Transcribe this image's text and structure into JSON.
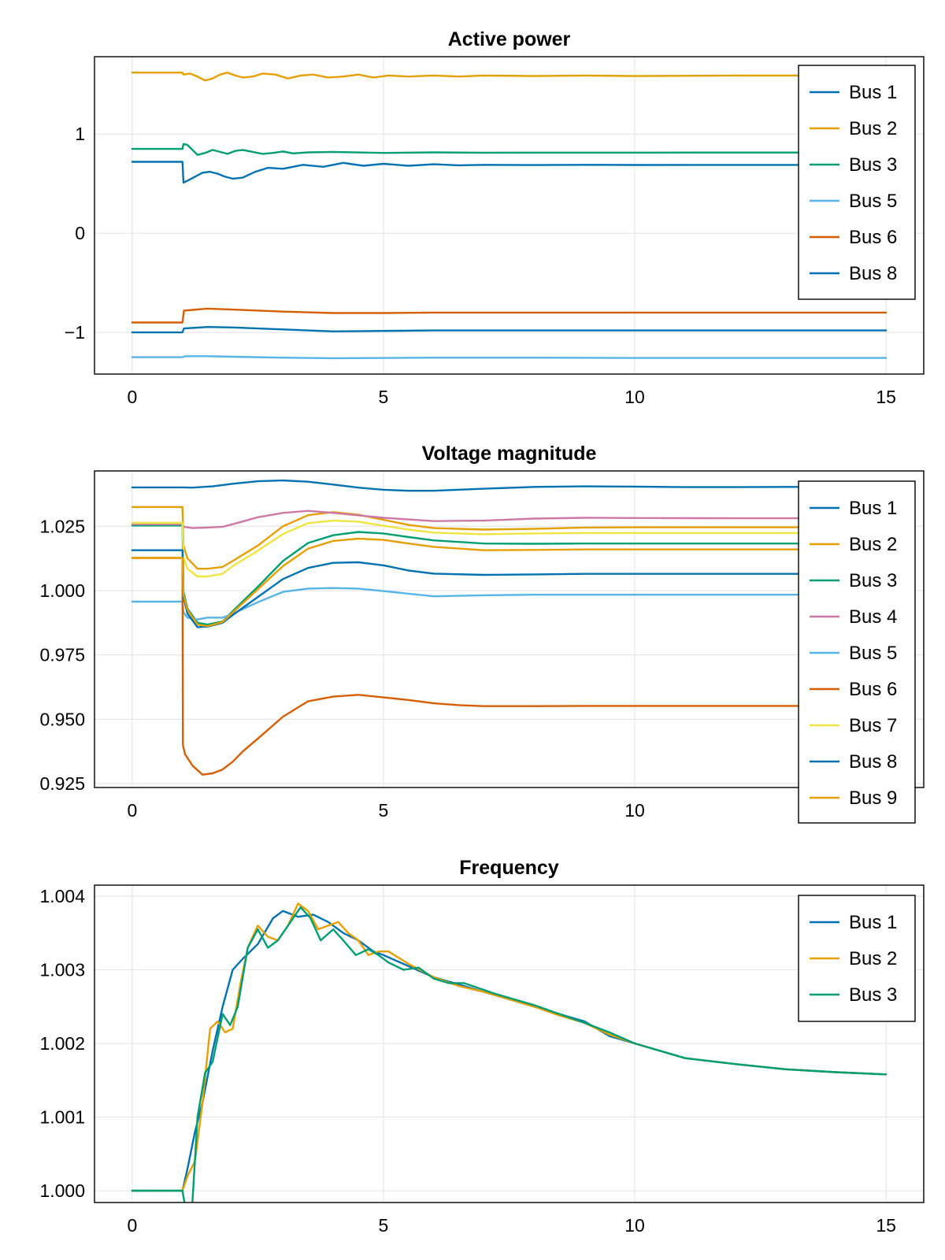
{
  "chart_data": [
    {
      "type": "line",
      "title": "Active power",
      "xlim": [
        -0.75,
        15.75
      ],
      "ylim": [
        -1.42,
        1.78
      ],
      "xticks": [
        0,
        5,
        10,
        15
      ],
      "xtick_labels": [
        "0",
        "5",
        "10",
        "15"
      ],
      "yticks": [
        -1,
        0,
        1
      ],
      "ytick_labels": [
        "−1",
        "0",
        "1"
      ],
      "legend_position": "top-right",
      "series": [
        {
          "name": "Bus 1",
          "color": "#0072b2",
          "x": [
            0,
            1,
            1.02,
            1.1,
            1.25,
            1.4,
            1.55,
            1.7,
            1.85,
            2.0,
            2.2,
            2.45,
            2.7,
            3.0,
            3.4,
            3.8,
            4.2,
            4.6,
            5.0,
            5.5,
            6,
            6.5,
            7,
            8,
            9,
            10,
            12,
            15
          ],
          "y": [
            0.72,
            0.72,
            0.51,
            0.53,
            0.57,
            0.61,
            0.62,
            0.6,
            0.57,
            0.55,
            0.56,
            0.62,
            0.66,
            0.65,
            0.69,
            0.67,
            0.71,
            0.68,
            0.7,
            0.68,
            0.695,
            0.685,
            0.69,
            0.687,
            0.69,
            0.688,
            0.689,
            0.689
          ]
        },
        {
          "name": "Bus 2",
          "color": "#e69f00",
          "x": [
            0,
            1,
            1.02,
            1.15,
            1.3,
            1.45,
            1.6,
            1.75,
            1.9,
            2.05,
            2.2,
            2.4,
            2.6,
            2.85,
            3.1,
            3.35,
            3.6,
            3.9,
            4.2,
            4.5,
            4.8,
            5.1,
            5.5,
            6,
            6.5,
            7,
            8,
            9,
            10,
            12,
            15
          ],
          "y": [
            1.62,
            1.62,
            1.6,
            1.61,
            1.58,
            1.54,
            1.56,
            1.6,
            1.62,
            1.59,
            1.57,
            1.58,
            1.61,
            1.6,
            1.56,
            1.59,
            1.6,
            1.57,
            1.58,
            1.6,
            1.57,
            1.59,
            1.58,
            1.59,
            1.58,
            1.59,
            1.585,
            1.59,
            1.585,
            1.59,
            1.59
          ]
        },
        {
          "name": "Bus 3",
          "color": "#009e73",
          "x": [
            0,
            1,
            1.02,
            1.1,
            1.2,
            1.3,
            1.45,
            1.6,
            1.75,
            1.9,
            2.05,
            2.2,
            2.4,
            2.6,
            2.8,
            3.0,
            3.2,
            3.5,
            4.0,
            5,
            6,
            7,
            8,
            10,
            12,
            15
          ],
          "y": [
            0.85,
            0.85,
            0.9,
            0.89,
            0.84,
            0.79,
            0.81,
            0.84,
            0.82,
            0.8,
            0.83,
            0.84,
            0.82,
            0.8,
            0.81,
            0.825,
            0.805,
            0.815,
            0.82,
            0.81,
            0.815,
            0.812,
            0.813,
            0.813,
            0.814,
            0.814
          ]
        },
        {
          "name": "Bus 5",
          "color": "#56b4e9",
          "x": [
            0,
            1,
            1.05,
            1.5,
            2,
            3,
            4,
            6,
            8,
            10,
            12,
            15
          ],
          "y": [
            -1.25,
            -1.25,
            -1.24,
            -1.24,
            -1.245,
            -1.255,
            -1.26,
            -1.255,
            -1.255,
            -1.258,
            -1.258,
            -1.258
          ]
        },
        {
          "name": "Bus 6",
          "color": "#d55e00",
          "x": [
            0,
            1,
            1.03,
            1.5,
            2,
            3,
            4,
            5,
            6,
            8,
            10,
            12,
            15
          ],
          "y": [
            -0.9,
            -0.9,
            -0.78,
            -0.76,
            -0.77,
            -0.79,
            -0.805,
            -0.805,
            -0.8,
            -0.8,
            -0.8,
            -0.8,
            -0.8
          ]
        },
        {
          "name": "Bus 8",
          "color": "#0072b2",
          "x": [
            0,
            1,
            1.03,
            1.5,
            2,
            3,
            4,
            5,
            6,
            8,
            10,
            12,
            15
          ],
          "y": [
            -1.0,
            -1.0,
            -0.96,
            -0.945,
            -0.95,
            -0.97,
            -0.99,
            -0.985,
            -0.98,
            -0.98,
            -0.98,
            -0.98,
            -0.98
          ]
        }
      ]
    },
    {
      "type": "line",
      "title": "Voltage magnitude",
      "xlim": [
        -0.75,
        15.75
      ],
      "ylim": [
        0.9235,
        1.0465
      ],
      "xticks": [
        0,
        5,
        10
      ],
      "xtick_labels": [
        "0",
        "5",
        "10"
      ],
      "yticks": [
        0.925,
        0.95,
        0.975,
        1.0,
        1.025
      ],
      "ytick_labels": [
        "0.925",
        "0.950",
        "0.975",
        "1.000",
        "1.025"
      ],
      "legend_position": "top-right",
      "series": [
        {
          "name": "Bus 1",
          "color": "#0072b2",
          "x": [
            0,
            1,
            1.2,
            1.6,
            2.0,
            2.5,
            3.0,
            3.5,
            4.0,
            4.5,
            5.0,
            5.5,
            6.0,
            7,
            8,
            9,
            10,
            11,
            12,
            13,
            15
          ],
          "y": [
            1.0401,
            1.0401,
            1.04,
            1.0405,
            1.0415,
            1.0425,
            1.0428,
            1.0423,
            1.0412,
            1.04,
            1.0392,
            1.0388,
            1.0388,
            1.0396,
            1.0403,
            1.0405,
            1.0404,
            1.0402,
            1.0402,
            1.0403,
            1.0403
          ]
        },
        {
          "name": "Bus 2",
          "color": "#e69f00",
          "x": [
            0,
            1,
            1.02,
            1.1,
            1.3,
            1.5,
            1.8,
            2.0,
            2.5,
            3.0,
            3.5,
            4.0,
            4.5,
            5.0,
            5.5,
            6.0,
            7.0,
            8.0,
            9,
            10,
            12,
            15
          ],
          "y": [
            1.0325,
            1.0325,
            1.0175,
            1.0125,
            1.0085,
            1.0085,
            1.0092,
            1.0115,
            1.0175,
            1.025,
            1.0293,
            1.0305,
            1.0295,
            1.0275,
            1.0255,
            1.0243,
            1.0237,
            1.024,
            1.0245,
            1.0246,
            1.0246,
            1.0246
          ]
        },
        {
          "name": "Bus 3",
          "color": "#009e73",
          "x": [
            0,
            1,
            1.02,
            1.1,
            1.3,
            1.5,
            1.8,
            2.0,
            2.5,
            3.0,
            3.5,
            4.0,
            4.5,
            5.0,
            5.5,
            6.0,
            7.0,
            8.0,
            9,
            10,
            12,
            15
          ],
          "y": [
            1.0253,
            1.0253,
            0.9995,
            0.993,
            0.9875,
            0.9868,
            0.988,
            0.992,
            1.0015,
            1.0115,
            1.0185,
            1.0215,
            1.0228,
            1.0222,
            1.0208,
            1.0195,
            1.0183,
            1.0182,
            1.0183,
            1.0183,
            1.0183,
            1.0183
          ]
        },
        {
          "name": "Bus 4",
          "color": "#cc79a7",
          "x": [
            0,
            1,
            1.02,
            1.2,
            1.5,
            1.8,
            2.0,
            2.5,
            3.0,
            3.5,
            4.0,
            5.0,
            6.0,
            7.0,
            8.0,
            9,
            10,
            12,
            15
          ],
          "y": [
            1.0258,
            1.0258,
            1.0248,
            1.0243,
            1.0245,
            1.0248,
            1.0258,
            1.0285,
            1.0302,
            1.031,
            1.0302,
            1.0283,
            1.027,
            1.0272,
            1.028,
            1.0283,
            1.0282,
            1.0281,
            1.0281
          ]
        },
        {
          "name": "Bus 5",
          "color": "#56b4e9",
          "x": [
            0,
            1,
            1.02,
            1.1,
            1.3,
            1.5,
            1.8,
            2.0,
            2.5,
            3.0,
            3.5,
            4.0,
            4.5,
            5.0,
            5.5,
            6.0,
            7.0,
            8.0,
            9,
            10,
            12,
            15
          ],
          "y": [
            0.9957,
            0.9957,
            0.9915,
            0.9895,
            0.9888,
            0.9895,
            0.9895,
            0.991,
            0.9955,
            0.9995,
            1.0008,
            1.001,
            1.0008,
            0.9998,
            0.9988,
            0.9978,
            0.9982,
            0.9984,
            0.9984,
            0.9984,
            0.9984,
            0.9984
          ]
        },
        {
          "name": "Bus 6",
          "color": "#d55e00",
          "x": [
            0,
            1,
            1.01,
            1.05,
            1.2,
            1.4,
            1.6,
            1.8,
            2.0,
            2.2,
            2.5,
            3.0,
            3.5,
            4.0,
            4.5,
            5.0,
            5.5,
            6.0,
            6.5,
            7.0,
            8.0,
            9,
            10,
            12,
            15
          ],
          "y": [
            1.0127,
            1.0127,
            0.94,
            0.9365,
            0.932,
            0.9285,
            0.929,
            0.9305,
            0.9335,
            0.9375,
            0.9425,
            0.951,
            0.957,
            0.9588,
            0.9595,
            0.9585,
            0.9575,
            0.9562,
            0.9555,
            0.9551,
            0.9551,
            0.9552,
            0.9552,
            0.9552,
            0.9552
          ]
        },
        {
          "name": "Bus 7",
          "color": "#f0e442",
          "x": [
            0,
            1,
            1.02,
            1.1,
            1.3,
            1.5,
            1.8,
            2.0,
            2.5,
            3.0,
            3.5,
            4.0,
            4.5,
            5.0,
            5.5,
            6.0,
            7.0,
            8.0,
            9,
            10,
            12,
            15
          ],
          "y": [
            1.0263,
            1.0263,
            1.0128,
            1.0085,
            1.0055,
            1.0055,
            1.0065,
            1.0095,
            1.0155,
            1.022,
            1.0262,
            1.0272,
            1.0268,
            1.0252,
            1.0237,
            1.0225,
            1.0219,
            1.0222,
            1.0224,
            1.0224,
            1.0224,
            1.0224
          ]
        },
        {
          "name": "Bus 8",
          "color": "#0072b2",
          "x": [
            0,
            1,
            1.02,
            1.1,
            1.3,
            1.5,
            1.8,
            2.0,
            2.5,
            3.0,
            3.5,
            4.0,
            4.5,
            5.0,
            5.5,
            6.0,
            7.0,
            8.0,
            9,
            10,
            12,
            15
          ],
          "y": [
            1.0157,
            1.0157,
            0.9975,
            0.991,
            0.9858,
            0.986,
            0.9875,
            0.9905,
            0.9975,
            1.0045,
            1.0088,
            1.0108,
            1.011,
            1.0098,
            1.0078,
            1.0066,
            1.0061,
            1.0063,
            1.0065,
            1.0065,
            1.0065,
            1.0065
          ]
        },
        {
          "name": "Bus 9",
          "color": "#e69f00",
          "x": [
            0,
            1,
            1.02,
            1.1,
            1.3,
            1.5,
            1.8,
            2.0,
            2.5,
            3.0,
            3.5,
            4.0,
            4.5,
            5.0,
            5.5,
            6.0,
            7.0,
            8.0,
            9,
            10,
            12,
            15
          ],
          "y": [
            1.0127,
            1.0127,
            0.9985,
            0.9925,
            0.9868,
            0.9862,
            0.9878,
            0.9915,
            1.0005,
            1.0095,
            1.0163,
            1.0193,
            1.0202,
            1.0197,
            1.0183,
            1.017,
            1.0157,
            1.0158,
            1.016,
            1.016,
            1.016,
            1.016
          ]
        }
      ]
    },
    {
      "type": "line",
      "title": "Frequency",
      "xlim": [
        -0.75,
        15.75
      ],
      "ylim": [
        0.99984,
        1.00415
      ],
      "xticks": [
        0,
        5,
        10,
        15
      ],
      "xtick_labels": [
        "0",
        "5",
        "10",
        "15"
      ],
      "yticks": [
        1.0,
        1.001,
        1.002,
        1.003,
        1.004
      ],
      "ytick_labels": [
        "1.000",
        "1.001",
        "1.002",
        "1.003",
        "1.004"
      ],
      "legend_position": "top-right",
      "series": [
        {
          "name": "Bus 1",
          "color": "#0072b2",
          "x": [
            0,
            1,
            1.1,
            1.25,
            1.4,
            1.6,
            1.8,
            2.0,
            2.2,
            2.5,
            2.8,
            3.0,
            3.3,
            3.6,
            3.9,
            4.2,
            4.5,
            4.8,
            5.0,
            5.5,
            6,
            6.5,
            7,
            7.5,
            8,
            8.5,
            9,
            9.5,
            10,
            11,
            12,
            13,
            14,
            15
          ],
          "y": [
            1.0,
            1.0,
            1.0003,
            1.0008,
            1.0012,
            1.0019,
            1.0025,
            1.003,
            1.00315,
            1.00335,
            1.0037,
            1.0038,
            1.00372,
            1.00375,
            1.00365,
            1.0035,
            1.0034,
            1.00325,
            1.0032,
            1.00305,
            1.0029,
            1.0028,
            1.0027,
            1.0026,
            1.0025,
            1.0024,
            1.0023,
            1.0021,
            1.002,
            1.0018,
            1.00172,
            1.00165,
            1.00161,
            1.00158
          ]
        },
        {
          "name": "Bus 2",
          "color": "#e69f00",
          "x": [
            0,
            1,
            1.1,
            1.25,
            1.4,
            1.55,
            1.7,
            1.85,
            2.0,
            2.15,
            2.3,
            2.5,
            2.7,
            2.9,
            3.1,
            3.3,
            3.5,
            3.7,
            3.9,
            4.1,
            4.3,
            4.5,
            4.7,
            4.9,
            5.1,
            5.5,
            6,
            6.5,
            7,
            7.5,
            8,
            8.5,
            9,
            9.5,
            10,
            11,
            12,
            13,
            14,
            15
          ],
          "y": [
            1.0,
            1.0,
            1.0002,
            1.0004,
            1.0012,
            1.0022,
            1.0023,
            1.00215,
            1.0022,
            1.0028,
            1.0033,
            1.0036,
            1.00345,
            1.0034,
            1.0036,
            1.0039,
            1.0038,
            1.00355,
            1.0036,
            1.00365,
            1.0035,
            1.0034,
            1.0032,
            1.00325,
            1.00325,
            1.00308,
            1.0029,
            1.00278,
            1.0027,
            1.0026,
            1.0025,
            1.00238,
            1.00228,
            1.00212,
            1.002,
            1.0018,
            1.00172,
            1.00165,
            1.00161,
            1.00158
          ]
        },
        {
          "name": "Bus 3",
          "color": "#009e73",
          "x": [
            0,
            1,
            1.05,
            1.12,
            1.2,
            1.3,
            1.45,
            1.6,
            1.8,
            1.95,
            2.1,
            2.3,
            2.5,
            2.7,
            2.9,
            3.1,
            3.35,
            3.55,
            3.75,
            4.0,
            4.2,
            4.45,
            4.7,
            4.9,
            5.1,
            5.4,
            5.7,
            6.0,
            6.3,
            6.6,
            6.9,
            7.2,
            7.5,
            8,
            8.5,
            9,
            9.5,
            10,
            11,
            12,
            13,
            14,
            15
          ],
          "y": [
            1.0,
            1.0,
            0.9998,
            0.99962,
            0.99985,
            1.001,
            1.0016,
            1.00175,
            1.0024,
            1.00225,
            1.0025,
            1.0033,
            1.00355,
            1.0033,
            1.0034,
            1.0036,
            1.00385,
            1.0037,
            1.0034,
            1.00355,
            1.0034,
            1.0032,
            1.00328,
            1.0032,
            1.0031,
            1.003,
            1.00303,
            1.00288,
            1.00282,
            1.00282,
            1.00275,
            1.00268,
            1.00262,
            1.00252,
            1.0024,
            1.00228,
            1.00215,
            1.002,
            1.0018,
            1.00172,
            1.00165,
            1.00161,
            1.00158
          ]
        }
      ]
    }
  ]
}
